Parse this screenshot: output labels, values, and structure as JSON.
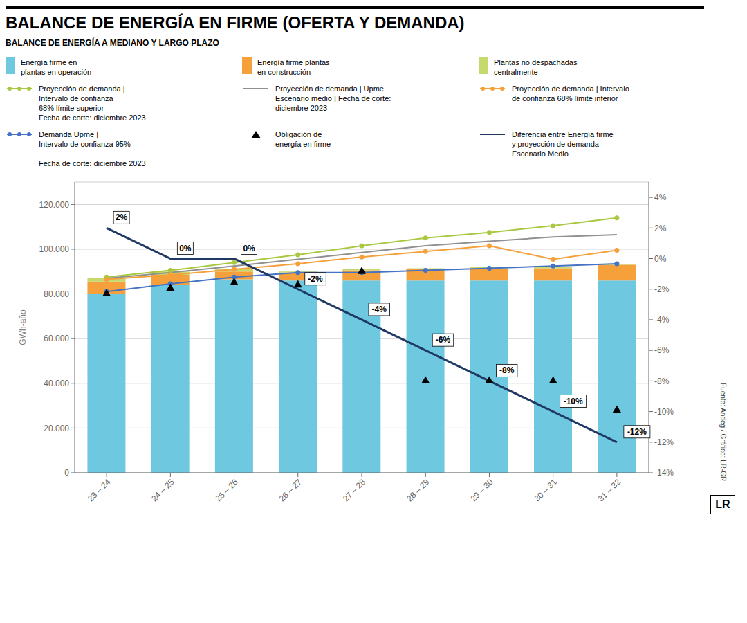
{
  "chart_data": {
    "type": "bar",
    "title": "BALANCE DE ENERGÍA EN FIRME (OFERTA Y DEMANDA)",
    "subtitle": "BALANCE DE ENERGÍA A MEDIANO Y LARGO PLAZO",
    "ylabel": "GWh-año",
    "annotations": [
      "Fuente: Andeg / Gráfico: LR-GR",
      "LR"
    ],
    "categories": [
      "23 – 24",
      "24 – 25",
      "25 – 26",
      "26 – 27",
      "27 – 28",
      "28 – 29",
      "29 – 30",
      "30 – 31",
      "31 – 32"
    ],
    "stacked": true,
    "grid": true,
    "ylim": [
      0,
      130000
    ],
    "yticks": [
      0,
      {
        "value": 20000,
        "label": "20.000"
      },
      {
        "value": 40000,
        "label": "40.000"
      },
      {
        "value": 60000,
        "label": "60.000"
      },
      {
        "value": 80000,
        "label": "80.000"
      },
      {
        "value": 100000,
        "label": "100.000"
      },
      {
        "value": 120000,
        "label": "120.000"
      }
    ],
    "y2lim": [
      -14,
      5
    ],
    "y2ticks": [
      {
        "value": -14,
        "label": "-14%"
      },
      {
        "value": -12,
        "label": "-12%"
      },
      {
        "value": -10,
        "label": "-10%"
      },
      {
        "value": -8,
        "label": "-8%"
      },
      {
        "value": -6,
        "label": "-6%"
      },
      {
        "value": -4,
        "label": "-4%"
      },
      {
        "value": -2,
        "label": "-2%"
      },
      {
        "value": 0,
        "label": "0%"
      },
      {
        "value": 2,
        "label": "2%"
      },
      {
        "value": 4,
        "label": "4%"
      }
    ],
    "series": [
      {
        "name": "Energía firme en\nplantas en operación",
        "type": "bar",
        "color": "#6DC8E0",
        "values": [
          80000,
          84000,
          86500,
          86000,
          86000,
          86000,
          86000,
          86000,
          86000
        ]
      },
      {
        "name": "Energía firme plantas\nen construcción",
        "type": "bar",
        "color": "#F5A03A",
        "values": [
          5500,
          4500,
          3500,
          3500,
          4500,
          5000,
          5500,
          5500,
          7000
        ]
      },
      {
        "name": "Plantas no despachadas\ncentralmente",
        "type": "bar",
        "color": "#C5D96D",
        "values": [
          1500,
          1500,
          1000,
          500,
          500,
          500,
          500,
          500,
          500
        ]
      },
      {
        "name": "Proyección de demanda |\nIntervalo de confianza\n68% límite superior\nFecha de corte: diciembre 2023",
        "type": "line",
        "marker": "circle",
        "color": "#A8C840",
        "values": [
          87500,
          90500,
          94000,
          97500,
          101500,
          105000,
          107500,
          110500,
          114000
        ]
      },
      {
        "name": "Proyección de demanda | Upme\nEscenario medio | Fecha de corte:\ndiciembre 2023",
        "type": "line",
        "marker": "none",
        "color": "#909090",
        "values": [
          87000,
          89500,
          92500,
          95500,
          98500,
          101500,
          103500,
          105500,
          106500
        ]
      },
      {
        "name": "Proyección de demanda | Intervalo\nde confianza 68% límite inferior",
        "type": "line",
        "marker": "circle",
        "color": "#F5A03A",
        "values": [
          86500,
          88500,
          91000,
          93500,
          96500,
          99000,
          101500,
          95500,
          99500
        ]
      },
      {
        "name": "Demanda Upme |\nIntervalo de confianza 95%\n\nFecha de corte: diciembre 2023",
        "type": "line",
        "marker": "circle",
        "color": "#4472C4",
        "values": [
          81000,
          84500,
          87500,
          89500,
          89500,
          90500,
          91500,
          92500,
          93500
        ]
      },
      {
        "name": "Obligación de\nenergía en firme",
        "type": "scatter",
        "marker": "triangle",
        "color": "#000000",
        "values": [
          80000,
          82500,
          85000,
          84000,
          90000,
          41000,
          41000,
          41000,
          28000
        ]
      },
      {
        "name": "Diferencia entre Energía firme\ny proyección de demanda\nEscenario Medio",
        "type": "line",
        "marker": "none",
        "axis": "y2",
        "color": "#1F3864",
        "data_labels": true,
        "values": [
          2,
          0,
          0,
          -2,
          -4,
          -6,
          -8,
          -10,
          -12
        ],
        "value_labels": [
          "2%",
          "0%",
          "0%",
          "-2%",
          "-4%",
          "-6%",
          "-8%",
          "-10%",
          "-12%"
        ]
      }
    ]
  }
}
